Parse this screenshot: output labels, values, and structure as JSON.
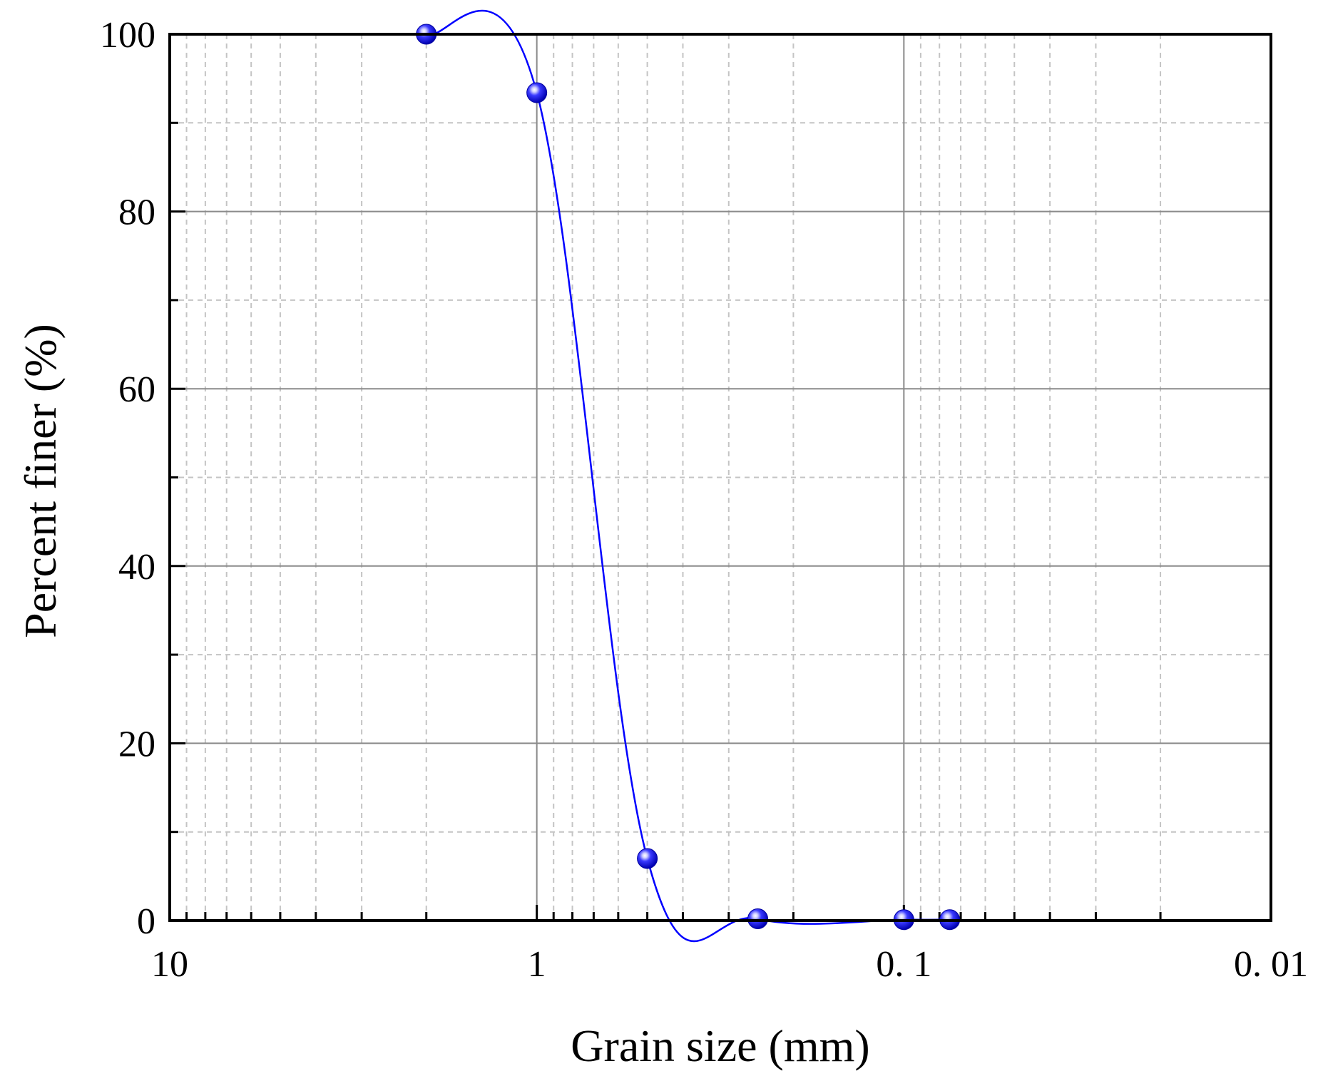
{
  "chart_data": {
    "type": "line",
    "xlabel": "Grain size (mm)",
    "ylabel": "Percent finer (%)",
    "x_scale": "log",
    "x_reversed": true,
    "xlim": [
      10,
      0.01
    ],
    "ylim": [
      0,
      100
    ],
    "x_ticks": [
      10,
      1,
      0.1,
      0.01
    ],
    "x_tick_labels": [
      "10",
      "1",
      "0. 1",
      "0. 01"
    ],
    "y_ticks": [
      0,
      20,
      40,
      60,
      80,
      100
    ],
    "y_tick_labels": [
      "0",
      "20",
      "40",
      "60",
      "80",
      "100"
    ],
    "grid": true,
    "series": [
      {
        "x": [
          2,
          1,
          0.5,
          0.25,
          0.1,
          0.075
        ],
        "y": [
          100,
          93.4,
          7.0,
          0.2,
          0.1,
          0.1
        ],
        "color": "#0000ff",
        "marker": "sphere",
        "smooth": true
      }
    ]
  }
}
